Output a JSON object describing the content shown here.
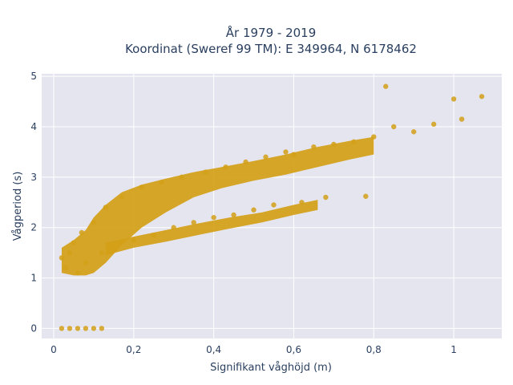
{
  "chart_data": {
    "type": "scatter",
    "title": "År 1979 - 2019",
    "subtitle": "Koordinat (Sweref 99 TM): E 349964, N 6178462",
    "xlabel": "Signifikant våghöjd (m)",
    "ylabel": "Vågperiod (s)",
    "xlim": [
      -0.03,
      1.12
    ],
    "ylim": [
      -0.2,
      5.05
    ],
    "x_ticks": [
      0,
      0.2,
      0.4,
      0.6,
      0.8,
      1
    ],
    "x_tick_labels": [
      "0",
      "0,2",
      "0,4",
      "0,6",
      "0,8",
      "1"
    ],
    "y_ticks": [
      0,
      1,
      2,
      3,
      4,
      5
    ],
    "y_tick_labels": [
      "0",
      "1",
      "2",
      "3",
      "4",
      "5"
    ],
    "grid": true,
    "marker_color": "#D4A017",
    "plot_bg": "#E5E5F0",
    "series": [
      {
        "values": [
          {
            "x": 0.02,
            "y": 0
          },
          {
            "x": 0.04,
            "y": 0
          },
          {
            "x": 0.06,
            "y": 0
          },
          {
            "x": 0.08,
            "y": 0
          },
          {
            "x": 0.1,
            "y": 0
          },
          {
            "x": 0.12,
            "y": 0
          },
          {
            "x": 0.02,
            "y": 1.4
          },
          {
            "x": 0.03,
            "y": 1.2
          },
          {
            "x": 0.04,
            "y": 1.5
          },
          {
            "x": 0.05,
            "y": 1.7
          },
          {
            "x": 0.06,
            "y": 1.1
          },
          {
            "x": 0.07,
            "y": 1.9
          },
          {
            "x": 0.08,
            "y": 1.3
          },
          {
            "x": 0.1,
            "y": 2.1
          },
          {
            "x": 0.12,
            "y": 1.5
          },
          {
            "x": 0.13,
            "y": 2.4
          },
          {
            "x": 0.15,
            "y": 1.6
          },
          {
            "x": 0.17,
            "y": 2.6
          },
          {
            "x": 0.2,
            "y": 1.75
          },
          {
            "x": 0.22,
            "y": 2.8
          },
          {
            "x": 0.25,
            "y": 1.85
          },
          {
            "x": 0.27,
            "y": 2.9
          },
          {
            "x": 0.3,
            "y": 2.0
          },
          {
            "x": 0.32,
            "y": 3.0
          },
          {
            "x": 0.35,
            "y": 2.1
          },
          {
            "x": 0.38,
            "y": 3.1
          },
          {
            "x": 0.4,
            "y": 2.2
          },
          {
            "x": 0.43,
            "y": 3.2
          },
          {
            "x": 0.45,
            "y": 2.25
          },
          {
            "x": 0.48,
            "y": 3.3
          },
          {
            "x": 0.5,
            "y": 2.35
          },
          {
            "x": 0.53,
            "y": 3.4
          },
          {
            "x": 0.55,
            "y": 2.45
          },
          {
            "x": 0.58,
            "y": 3.5
          },
          {
            "x": 0.6,
            "y": 3.45
          },
          {
            "x": 0.62,
            "y": 2.5
          },
          {
            "x": 0.65,
            "y": 3.6
          },
          {
            "x": 0.68,
            "y": 2.6
          },
          {
            "x": 0.7,
            "y": 3.65
          },
          {
            "x": 0.75,
            "y": 3.7
          },
          {
            "x": 0.78,
            "y": 2.62
          },
          {
            "x": 0.8,
            "y": 3.8
          },
          {
            "x": 0.83,
            "y": 4.8
          },
          {
            "x": 0.85,
            "y": 4.0
          },
          {
            "x": 0.9,
            "y": 3.9
          },
          {
            "x": 0.95,
            "y": 4.05
          },
          {
            "x": 1.0,
            "y": 4.55
          },
          {
            "x": 1.02,
            "y": 4.15
          },
          {
            "x": 1.07,
            "y": 4.6
          }
        ]
      }
    ]
  }
}
